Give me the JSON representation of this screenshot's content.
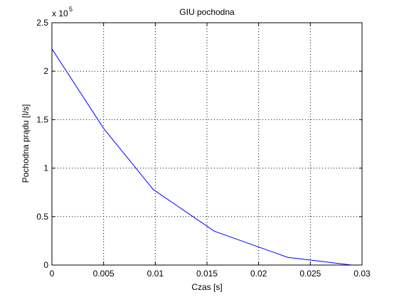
{
  "chart_data": {
    "type": "line",
    "title": "GIU pochodna",
    "xlabel": "Czas [s]",
    "ylabel": "Pochodna prądu [I/s]",
    "xlim": [
      0,
      0.03
    ],
    "ylim": [
      0,
      2.5
    ],
    "y_exponent_base": "x 10",
    "y_exponent_power": "5",
    "x_ticks": [
      0,
      0.005,
      0.01,
      0.015,
      0.02,
      0.025,
      0.03
    ],
    "x_tick_labels": [
      "0",
      "0.005",
      "0.01",
      "0.015",
      "0.02",
      "0.025",
      "0.03"
    ],
    "y_ticks": [
      0,
      0.5,
      1,
      1.5,
      2,
      2.5
    ],
    "y_tick_labels": [
      "0",
      "0.5",
      "1",
      "1.5",
      "2",
      "2.5"
    ],
    "grid": true,
    "grid_style": "dotted",
    "series": [
      {
        "color": "#0000ff",
        "x": [
          0,
          0.005,
          0.0098,
          0.0157,
          0.0228,
          0.029
        ],
        "y": [
          2.23,
          1.41,
          0.78,
          0.35,
          0.08,
          0.0
        ]
      }
    ]
  }
}
